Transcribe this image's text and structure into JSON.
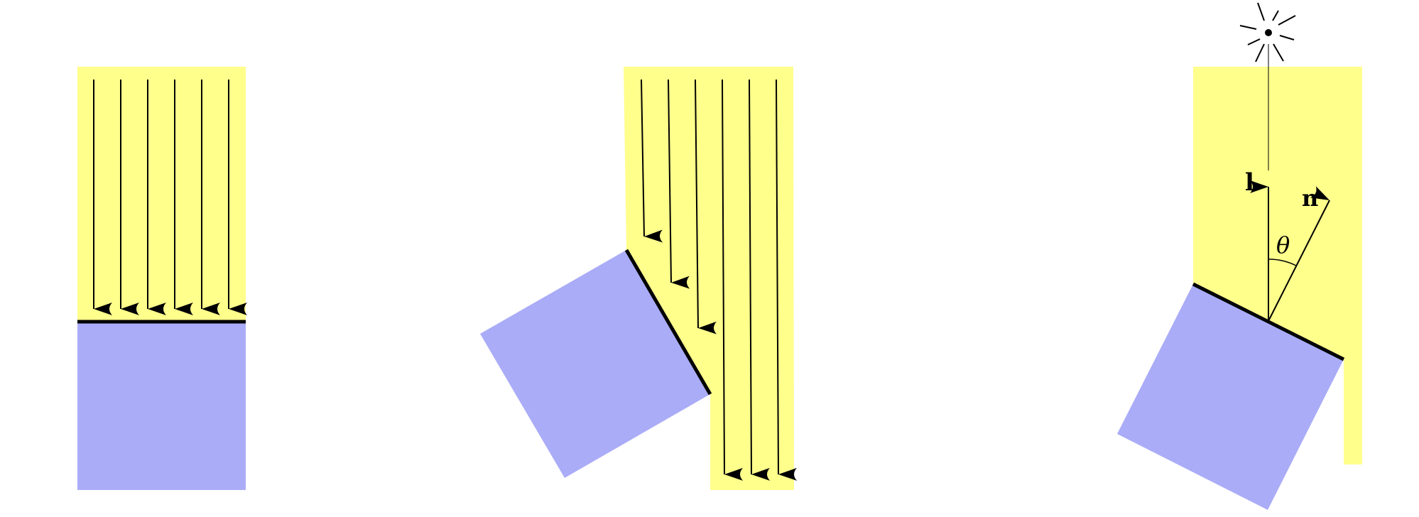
{
  "colors": {
    "beam": "#ffff8c",
    "surface": "#abacf7",
    "ink": "#000000"
  },
  "panels": [
    {
      "name": "perpendicular-incidence",
      "arrow_count": 6
    },
    {
      "name": "oblique-incidence",
      "arrow_count": 6
    },
    {
      "name": "lambert-cosine-geometry",
      "arrow_count": 2
    }
  ],
  "labels": {
    "light_vector": "l",
    "normal_vector": "n",
    "angle": "θ"
  },
  "icons": {
    "light_source": "sun-icon"
  }
}
